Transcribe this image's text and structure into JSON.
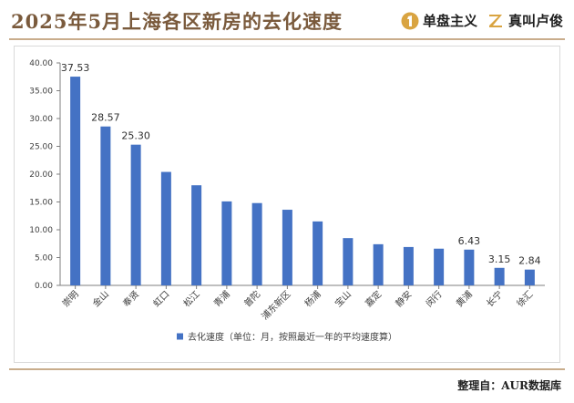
{
  "header": {
    "title": "2025年5月上海各区新房的去化速度",
    "brand1": {
      "name": "单盘主义",
      "icon": "brand-logo-1-icon"
    },
    "brand2": {
      "name": "真叫卢俊",
      "icon": "brand-logo-z-icon"
    }
  },
  "footer": {
    "credit": "整理自：AUR数据库"
  },
  "colors": {
    "bar": "#4472c4",
    "accent": "#c9ad8c",
    "title": "#7a5a3c"
  },
  "chart_data": {
    "type": "bar",
    "categories": [
      "崇明",
      "金山",
      "奉贤",
      "虹口",
      "松江",
      "青浦",
      "普陀",
      "浦东新区",
      "杨浦",
      "宝山",
      "嘉定",
      "静安",
      "闵行",
      "黄浦",
      "长宁",
      "徐汇"
    ],
    "series": [
      {
        "name": "去化速度（单位：月，按照最近一年的平均速度算）",
        "values": [
          37.53,
          28.57,
          25.3,
          20.4,
          18.0,
          15.1,
          14.8,
          13.6,
          11.5,
          8.5,
          7.4,
          6.9,
          6.6,
          6.43,
          3.15,
          2.84
        ]
      }
    ],
    "data_labels": [
      {
        "category": "崇明",
        "text": "37.53"
      },
      {
        "category": "金山",
        "text": "28.57"
      },
      {
        "category": "奉贤",
        "text": "25.30"
      },
      {
        "category": "黄浦",
        "text": "6.43"
      },
      {
        "category": "长宁",
        "text": "3.15"
      },
      {
        "category": "徐汇",
        "text": "2.84"
      }
    ],
    "ylim": [
      0,
      40
    ],
    "yticks": [
      "0.00",
      "5.00",
      "10.00",
      "15.00",
      "20.00",
      "25.00",
      "30.00",
      "35.00",
      "40.00"
    ],
    "ytick_values": [
      0,
      5,
      10,
      15,
      20,
      25,
      30,
      35,
      40
    ],
    "grid": false,
    "legend_position": "bottom"
  }
}
